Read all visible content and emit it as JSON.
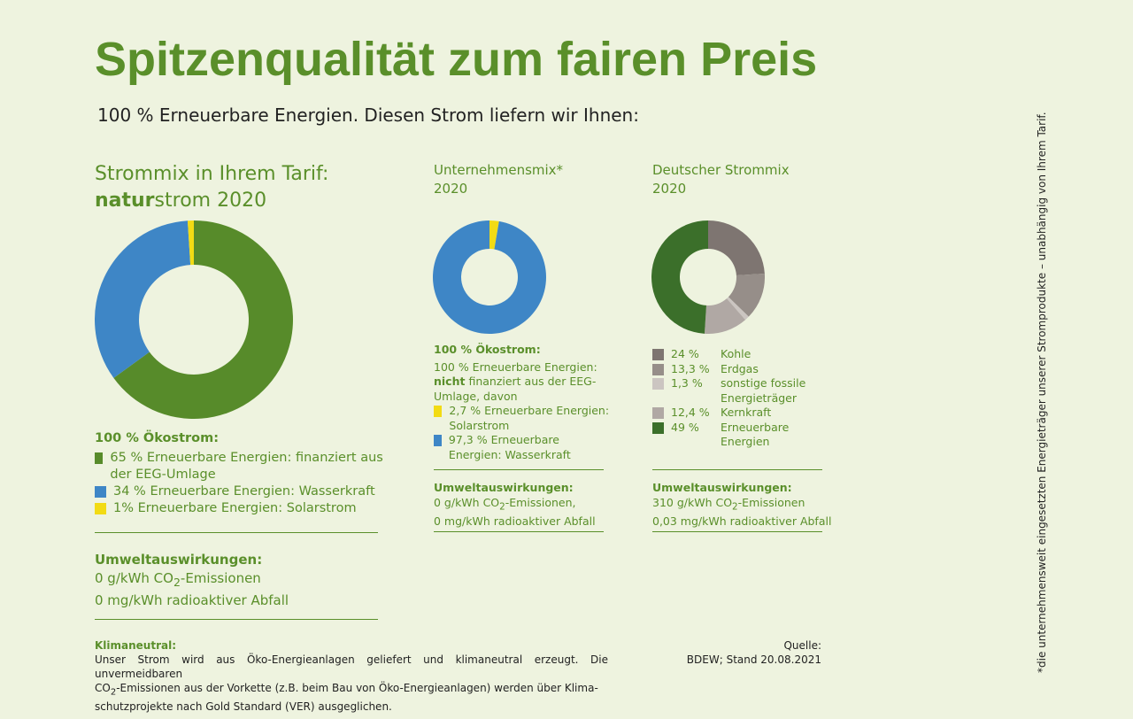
{
  "title": "Spitzenqualität zum fairen Preis",
  "subtitle": "100 % Erneuerbare Energien. Diesen Strom liefern wir Ihnen:",
  "side_note": "*die unternehmensweit eingesetzten Energieträger unserer Stromprodukte – unabhängig von Ihrem Tarif.",
  "tariff": {
    "heading": "Strommix in Ihrem Tarif:",
    "brand_bold": "natur",
    "brand_rest": "strom 2020",
    "oeko": "100 % Ökostrom:",
    "legend": [
      "65 % Erneuerbare Energien: finanziert aus der EEG-Umlage",
      "34 % Erneuerbare Energien: Wasserkraft",
      "1% Erneuerbare Energien: Solarstrom"
    ],
    "env_title": "Umweltauswirkungen:",
    "env1_pre": "0 g/kWh CO",
    "env1_sub": "2",
    "env1_post": "-Emissionen",
    "env2": "0 mg/kWh radioaktiver Abfall"
  },
  "company": {
    "heading1": "Unternehmensmix*",
    "heading2": "2020",
    "oeko": "100 % Ökostrom:",
    "intro1": "100 % Erneuerbare Energien:",
    "intro_bold": "nicht",
    "intro2": " finanziert aus der EEG-Umlage, davon",
    "legend": [
      "2,7 % Erneuerbare Energien: Solarstrom",
      "97,3 % Erneuerbare Energien: Wasserkraft"
    ],
    "env_title": "Umweltauswirkungen:",
    "env1_pre": "0 g/kWh CO",
    "env1_sub": "2",
    "env1_post": "-Emissionen,",
    "env2": "0 mg/kWh radioaktiver Abfall"
  },
  "germany": {
    "heading1": "Deutscher Strommix",
    "heading2": "2020",
    "legend": [
      {
        "pct": "24 %",
        "label": "Kohle"
      },
      {
        "pct": "13,3 %",
        "label": "Erdgas"
      },
      {
        "pct": "1,3 %",
        "label": "sonstige fossile Energieträger"
      },
      {
        "pct": "12,4 %",
        "label": "Kernkraft"
      },
      {
        "pct": "49 %",
        "label": "Erneuerbare Energien"
      }
    ],
    "env_title": "Umweltauswirkungen:",
    "env1_pre": "310 g/kWh CO",
    "env1_sub": "2",
    "env1_post": "-Emissionen",
    "env2": "0,03 mg/kWh radioaktiver Abfall"
  },
  "footer": {
    "klima_title": "Klimaneutral:",
    "klima_l1": "Unser Strom wird aus Öko-Energieanlagen geliefert und klimaneutral erzeugt. Die unvermeidbaren",
    "klima_l2_pre": "CO",
    "klima_l2_sub": "2",
    "klima_l2_post": "-Emissionen aus der Vorkette (z.B. beim Bau von Öko-Energieanlagen) werden über Klima-",
    "klima_l3": "schutzprojekte nach Gold Standard (VER) ausgeglichen.",
    "source_title": "Quelle:",
    "source": "BDEW; Stand 20.08.2021"
  },
  "chart_data": [
    {
      "type": "pie",
      "donut": true,
      "categories": [
        "Erneuerbare Energien (EEG-Umlage)",
        "Wasserkraft",
        "Solarstrom"
      ],
      "values": [
        65,
        34,
        1
      ],
      "colors": [
        "#578b2a",
        "#3e86c6",
        "#f2db14"
      ]
    },
    {
      "type": "pie",
      "donut": true,
      "categories": [
        "Solarstrom",
        "Wasserkraft"
      ],
      "values": [
        2.7,
        97.3
      ],
      "colors": [
        "#f2db14",
        "#3e86c6"
      ]
    },
    {
      "type": "pie",
      "donut": true,
      "categories": [
        "Kohle",
        "Erdgas",
        "sonstige fossile Energieträger",
        "Kernkraft",
        "Erneuerbare Energien"
      ],
      "values": [
        24,
        13.3,
        1.3,
        12.4,
        49
      ],
      "colors": [
        "#7e7571",
        "#968e89",
        "#cbc5c1",
        "#b0a8a4",
        "#3b6f2a"
      ]
    }
  ]
}
